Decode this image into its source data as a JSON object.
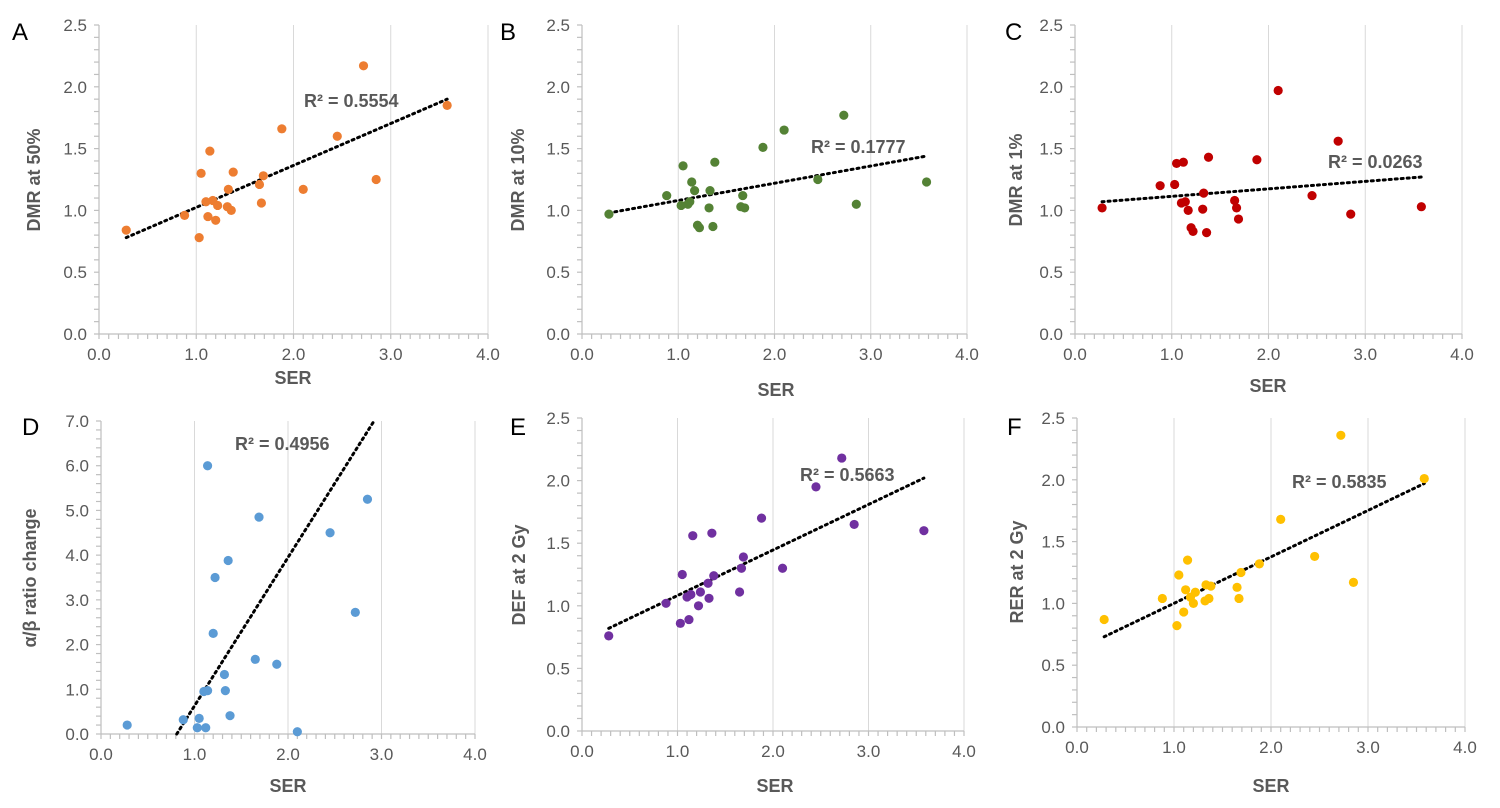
{
  "chart_data": [
    {
      "panel": "A",
      "type": "scatter",
      "color": "#ED7D31",
      "xlabel": "SER",
      "ylabel": "DMR at 50%",
      "xlim": [
        0,
        4
      ],
      "ylim": [
        0,
        2.5
      ],
      "xticks": [
        "0.0",
        "1.0",
        "2.0",
        "3.0",
        "4.0"
      ],
      "yticks": [
        "0.0",
        "0.5",
        "1.0",
        "1.5",
        "2.0",
        "2.5"
      ],
      "x_minor": 0.1,
      "y_minor": 0.1,
      "grid": "vertical",
      "r2": "R² = 0.5554",
      "trend": [
        [
          0.28,
          0.78
        ],
        [
          3.58,
          1.9
        ]
      ],
      "points": [
        [
          0.28,
          0.84
        ],
        [
          0.88,
          0.96
        ],
        [
          1.03,
          0.78
        ],
        [
          1.05,
          1.3
        ],
        [
          1.1,
          1.07
        ],
        [
          1.12,
          0.95
        ],
        [
          1.14,
          1.48
        ],
        [
          1.17,
          1.08
        ],
        [
          1.2,
          0.92
        ],
        [
          1.22,
          1.04
        ],
        [
          1.32,
          1.03
        ],
        [
          1.33,
          1.17
        ],
        [
          1.36,
          1.0
        ],
        [
          1.38,
          1.31
        ],
        [
          1.65,
          1.21
        ],
        [
          1.67,
          1.06
        ],
        [
          1.69,
          1.28
        ],
        [
          1.88,
          1.66
        ],
        [
          2.1,
          1.17
        ],
        [
          2.45,
          1.6
        ],
        [
          2.72,
          2.17
        ],
        [
          2.85,
          1.25
        ],
        [
          3.58,
          1.85
        ]
      ]
    },
    {
      "panel": "B",
      "type": "scatter",
      "color": "#548235",
      "xlabel": "SER",
      "ylabel": "DMR at 10%",
      "xlim": [
        0,
        4
      ],
      "ylim": [
        0,
        2.5
      ],
      "xticks": [
        "0.0",
        "1.0",
        "2.0",
        "3.0",
        "4.0"
      ],
      "yticks": [
        "0.0",
        "0.5",
        "1.0",
        "1.5",
        "2.0",
        "2.5"
      ],
      "x_minor": 0.1,
      "y_minor": 0.1,
      "grid": "vertical",
      "r2": "R² = 0.1777",
      "trend": [
        [
          0.28,
          0.98
        ],
        [
          3.58,
          1.44
        ]
      ],
      "points": [
        [
          0.28,
          0.97
        ],
        [
          0.88,
          1.12
        ],
        [
          1.03,
          1.04
        ],
        [
          1.05,
          1.36
        ],
        [
          1.1,
          1.05
        ],
        [
          1.12,
          1.07
        ],
        [
          1.14,
          1.23
        ],
        [
          1.17,
          1.16
        ],
        [
          1.2,
          0.88
        ],
        [
          1.22,
          0.86
        ],
        [
          1.32,
          1.02
        ],
        [
          1.33,
          1.16
        ],
        [
          1.36,
          0.87
        ],
        [
          1.38,
          1.39
        ],
        [
          1.65,
          1.03
        ],
        [
          1.67,
          1.12
        ],
        [
          1.69,
          1.02
        ],
        [
          1.88,
          1.51
        ],
        [
          2.1,
          1.65
        ],
        [
          2.45,
          1.25
        ],
        [
          2.72,
          1.77
        ],
        [
          2.85,
          1.05
        ],
        [
          3.58,
          1.23
        ]
      ]
    },
    {
      "panel": "C",
      "type": "scatter",
      "color": "#C00000",
      "xlabel": "SER",
      "ylabel": "DMR at 1%",
      "xlim": [
        0,
        4
      ],
      "ylim": [
        0,
        2.5
      ],
      "xticks": [
        "0.0",
        "1.0",
        "2.0",
        "3.0",
        "4.0"
      ],
      "yticks": [
        "0.0",
        "0.5",
        "1.0",
        "1.5",
        "2.0",
        "2.5"
      ],
      "x_minor": 0.1,
      "y_minor": 0.1,
      "grid": "vertical",
      "r2": "R² = 0.0263",
      "trend": [
        [
          0.28,
          1.07
        ],
        [
          3.58,
          1.27
        ]
      ],
      "points": [
        [
          0.28,
          1.02
        ],
        [
          0.88,
          1.2
        ],
        [
          1.03,
          1.21
        ],
        [
          1.05,
          1.38
        ],
        [
          1.1,
          1.06
        ],
        [
          1.12,
          1.39
        ],
        [
          1.14,
          1.07
        ],
        [
          1.17,
          1.0
        ],
        [
          1.2,
          0.86
        ],
        [
          1.22,
          0.83
        ],
        [
          1.32,
          1.01
        ],
        [
          1.33,
          1.14
        ],
        [
          1.36,
          0.82
        ],
        [
          1.38,
          1.43
        ],
        [
          1.65,
          1.08
        ],
        [
          1.67,
          1.02
        ],
        [
          1.69,
          0.93
        ],
        [
          1.88,
          1.41
        ],
        [
          2.1,
          1.97
        ],
        [
          2.45,
          1.12
        ],
        [
          2.72,
          1.56
        ],
        [
          2.85,
          0.97
        ],
        [
          3.58,
          1.03
        ]
      ]
    },
    {
      "panel": "D",
      "type": "scatter",
      "color": "#5B9BD5",
      "xlabel": "SER",
      "ylabel": "α/β ratio change",
      "xlim": [
        0,
        4
      ],
      "ylim": [
        0,
        7
      ],
      "xticks": [
        "0.0",
        "1.0",
        "2.0",
        "3.0",
        "4.0"
      ],
      "yticks": [
        "0.0",
        "1.0",
        "2.0",
        "3.0",
        "4.0",
        "5.0",
        "6.0",
        "7.0"
      ],
      "x_minor": 0.1,
      "y_minor": 0.2,
      "grid": "vertical",
      "r2": "R² = 0.4956",
      "trend": [
        [
          0.81,
          0.0
        ],
        [
          2.92,
          7.0
        ]
      ],
      "points": [
        [
          0.28,
          0.2
        ],
        [
          0.88,
          0.32
        ],
        [
          1.03,
          0.14
        ],
        [
          1.05,
          0.35
        ],
        [
          1.1,
          0.95
        ],
        [
          1.12,
          0.14
        ],
        [
          1.14,
          0.97
        ],
        [
          1.14,
          6.0
        ],
        [
          1.2,
          2.25
        ],
        [
          1.22,
          3.5
        ],
        [
          1.32,
          1.33
        ],
        [
          1.33,
          0.97
        ],
        [
          1.36,
          3.88
        ],
        [
          1.38,
          0.41
        ],
        [
          1.65,
          1.67
        ],
        [
          1.69,
          4.85
        ],
        [
          1.88,
          1.56
        ],
        [
          2.1,
          0.05
        ],
        [
          2.45,
          4.5
        ],
        [
          2.72,
          2.72
        ],
        [
          2.85,
          5.25
        ]
      ]
    },
    {
      "panel": "E",
      "type": "scatter",
      "color": "#7030A0",
      "xlabel": "SER",
      "ylabel": "DEF at 2 Gy",
      "xlim": [
        0,
        4
      ],
      "ylim": [
        0,
        2.5
      ],
      "xticks": [
        "0.0",
        "1.0",
        "2.0",
        "3.0",
        "4.0"
      ],
      "yticks": [
        "0.0",
        "0.5",
        "1.0",
        "1.5",
        "2.0",
        "2.5"
      ],
      "x_minor": 0.1,
      "y_minor": 0.1,
      "grid": "vertical",
      "r2": "R² = 0.5663",
      "trend": [
        [
          0.28,
          0.82
        ],
        [
          3.58,
          2.02
        ]
      ],
      "points": [
        [
          0.28,
          0.76
        ],
        [
          0.88,
          1.02
        ],
        [
          1.03,
          0.86
        ],
        [
          1.05,
          1.25
        ],
        [
          1.1,
          1.07
        ],
        [
          1.12,
          0.89
        ],
        [
          1.14,
          1.09
        ],
        [
          1.16,
          1.56
        ],
        [
          1.22,
          1.0
        ],
        [
          1.24,
          1.11
        ],
        [
          1.32,
          1.18
        ],
        [
          1.33,
          1.06
        ],
        [
          1.36,
          1.58
        ],
        [
          1.38,
          1.24
        ],
        [
          1.65,
          1.11
        ],
        [
          1.67,
          1.3
        ],
        [
          1.69,
          1.39
        ],
        [
          1.88,
          1.7
        ],
        [
          2.1,
          1.3
        ],
        [
          2.45,
          1.95
        ],
        [
          2.72,
          2.18
        ],
        [
          2.85,
          1.65
        ],
        [
          3.58,
          1.6
        ]
      ]
    },
    {
      "panel": "F",
      "type": "scatter",
      "color": "#FFC000",
      "xlabel": "SER",
      "ylabel": "RER at 2 Gy",
      "xlim": [
        0,
        4
      ],
      "ylim": [
        0,
        2.5
      ],
      "xticks": [
        "0.0",
        "1.0",
        "2.0",
        "3.0",
        "4.0"
      ],
      "yticks": [
        "0.0",
        "0.5",
        "1.0",
        "1.5",
        "2.0",
        "2.5"
      ],
      "x_minor": 0.1,
      "y_minor": 0.1,
      "grid": "vertical",
      "r2": "R² = 0.5835",
      "trend": [
        [
          0.28,
          0.73
        ],
        [
          3.58,
          1.97
        ]
      ],
      "points": [
        [
          0.28,
          0.87
        ],
        [
          0.88,
          1.04
        ],
        [
          1.03,
          0.82
        ],
        [
          1.05,
          1.23
        ],
        [
          1.1,
          0.93
        ],
        [
          1.12,
          1.11
        ],
        [
          1.14,
          1.35
        ],
        [
          1.17,
          1.05
        ],
        [
          1.2,
          1.0
        ],
        [
          1.22,
          1.09
        ],
        [
          1.32,
          1.02
        ],
        [
          1.33,
          1.15
        ],
        [
          1.36,
          1.04
        ],
        [
          1.38,
          1.14
        ],
        [
          1.65,
          1.13
        ],
        [
          1.67,
          1.04
        ],
        [
          1.69,
          1.25
        ],
        [
          1.88,
          1.32
        ],
        [
          2.1,
          1.68
        ],
        [
          2.45,
          1.38
        ],
        [
          2.72,
          2.36
        ],
        [
          2.85,
          1.17
        ],
        [
          3.58,
          2.01
        ]
      ]
    }
  ]
}
